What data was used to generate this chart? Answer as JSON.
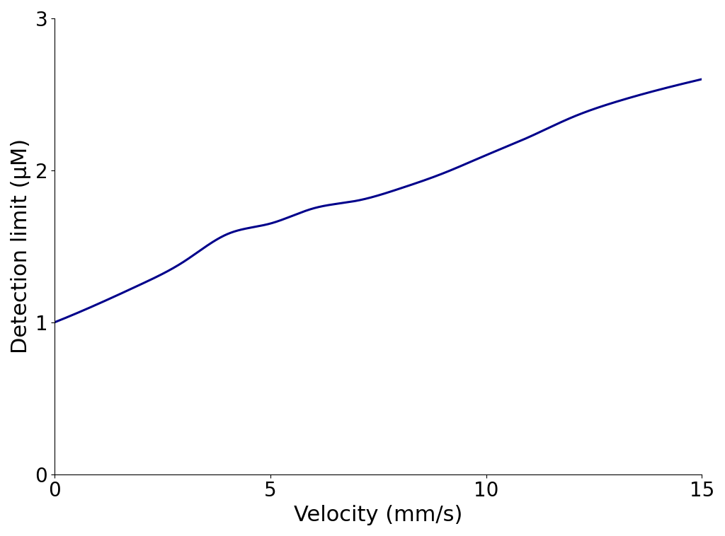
{
  "xlabel": "Velocity (mm/s)",
  "ylabel": "Detection limit (μM)",
  "xlim": [
    0,
    15
  ],
  "ylim": [
    0,
    3
  ],
  "xticks": [
    0,
    5,
    10,
    15
  ],
  "yticks": [
    0,
    1,
    2,
    3
  ],
  "line_color": "#00008B",
  "line_width": 2.2,
  "xlabel_fontsize": 22,
  "ylabel_fontsize": 22,
  "tick_fontsize": 20,
  "background_color": "#ffffff",
  "x_start": 0,
  "x_end": 15
}
